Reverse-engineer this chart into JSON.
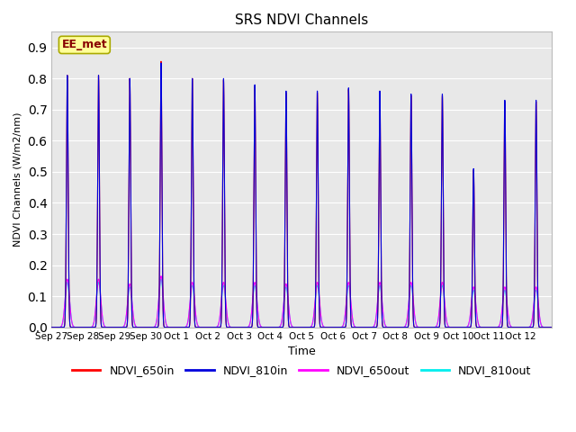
{
  "title": "SRS NDVI Channels",
  "ylabel": "NDVI Channels (W/m2/nm)",
  "xlabel": "Time",
  "annotation": "EE_met",
  "ylim": [
    0.0,
    0.95
  ],
  "yticks": [
    0.0,
    0.1,
    0.2,
    0.3,
    0.4,
    0.5,
    0.6,
    0.7,
    0.8,
    0.9
  ],
  "colors": {
    "NDVI_650in": "#ff0000",
    "NDVI_810in": "#0000dd",
    "NDVI_650out": "#ff00ff",
    "NDVI_810out": "#00eeee"
  },
  "bg_color": "#e8e8e8",
  "fig_color": "#ffffff",
  "xtick_labels": [
    "Sep 27",
    "Sep 28",
    "Sep 29",
    "Sep 30",
    "Oct 1",
    "Oct 2",
    "Oct 3",
    "Oct 4",
    "Oct 5",
    "Oct 6",
    "Oct 7",
    "Oct 8",
    "Oct 9",
    "Oct 10",
    "Oct 11",
    "Oct 12"
  ],
  "peak_810in": [
    0.81,
    0.81,
    0.8,
    0.85,
    0.8,
    0.8,
    0.78,
    0.76,
    0.76,
    0.77,
    0.76,
    0.75,
    0.75,
    0.51,
    0.73,
    0.73
  ],
  "peak_650in": [
    0.81,
    0.81,
    0.8,
    0.855,
    0.8,
    0.795,
    0.775,
    0.755,
    0.755,
    0.765,
    0.755,
    0.745,
    0.745,
    0.505,
    0.725,
    0.725
  ],
  "peak_650out": [
    0.155,
    0.155,
    0.14,
    0.165,
    0.145,
    0.145,
    0.145,
    0.14,
    0.145,
    0.145,
    0.145,
    0.145,
    0.145,
    0.13,
    0.13,
    0.13
  ],
  "peak_810out": [
    0.145,
    0.145,
    0.13,
    0.155,
    0.135,
    0.135,
    0.135,
    0.13,
    0.135,
    0.135,
    0.135,
    0.135,
    0.135,
    0.12,
    0.12,
    0.12
  ],
  "linewidth": 0.8,
  "legend_fontsize": 9,
  "title_fontsize": 11
}
